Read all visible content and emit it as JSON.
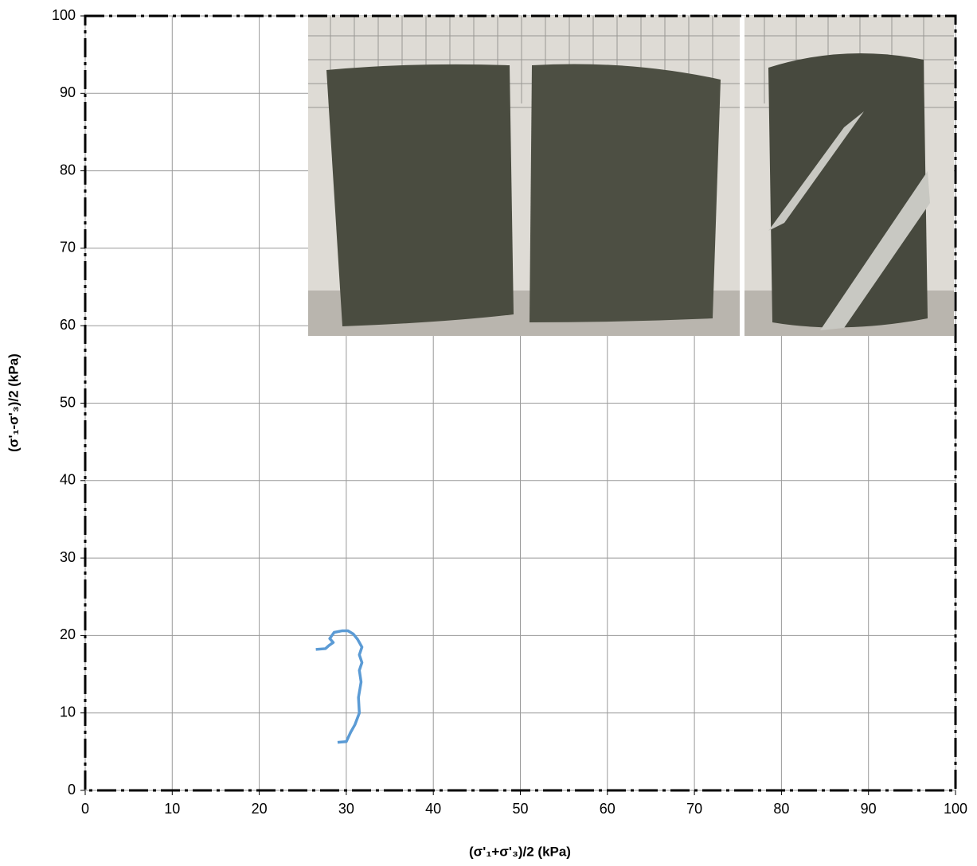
{
  "chart_data": {
    "type": "line",
    "x_label": "(σ'₁+σ'₃)/2  (kPa)",
    "y_label": "(σ'₁-σ'₃)/2  (kPa)",
    "xlim": [
      0,
      100
    ],
    "ylim": [
      0,
      100
    ],
    "xticks": [
      0,
      10,
      20,
      30,
      40,
      50,
      60,
      70,
      80,
      90,
      100
    ],
    "yticks": [
      0,
      10,
      20,
      30,
      40,
      50,
      60,
      70,
      80,
      90,
      100
    ],
    "grid": true,
    "series": [
      {
        "color": "#5b9bd5",
        "x": [
          29.0,
          30.0,
          30.5,
          31.0,
          31.5,
          31.4,
          31.7,
          31.5,
          31.8,
          31.5,
          31.8,
          31.3,
          30.8,
          30.2,
          29.5,
          28.6,
          28.1,
          28.5,
          28.0,
          27.6,
          26.5
        ],
        "values": [
          6.2,
          6.3,
          7.5,
          8.5,
          10.0,
          12.0,
          14.0,
          15.5,
          16.5,
          17.5,
          18.5,
          19.5,
          20.2,
          20.6,
          20.6,
          20.4,
          19.6,
          19.1,
          18.7,
          18.3,
          18.2
        ]
      }
    ]
  }
}
